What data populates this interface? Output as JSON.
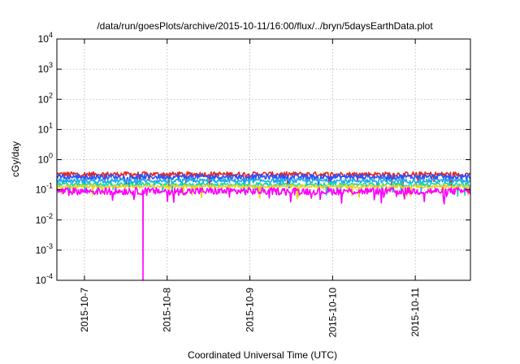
{
  "chart_data": {
    "type": "line",
    "title": "/data/run/goesPlots/archive/2015-10-11/16:00/flux/../bryn/5daysEarthData.plot",
    "xlabel": "Coordinated Universal Time (UTC)",
    "ylabel": "cGy/day",
    "yscale": "log",
    "ylim": [
      0.0001,
      10000
    ],
    "yticks": [
      {
        "value": 0.0001,
        "base": "10",
        "exp": "-4"
      },
      {
        "value": 0.001,
        "base": "10",
        "exp": "-3"
      },
      {
        "value": 0.01,
        "base": "10",
        "exp": "-2"
      },
      {
        "value": 0.1,
        "base": "10",
        "exp": "-1"
      },
      {
        "value": 1,
        "base": "10",
        "exp": "0"
      },
      {
        "value": 10,
        "base": "10",
        "exp": "1"
      },
      {
        "value": 100,
        "base": "10",
        "exp": "2"
      },
      {
        "value": 1000,
        "base": "10",
        "exp": "3"
      },
      {
        "value": 10000,
        "base": "10",
        "exp": "4"
      }
    ],
    "xlim": [
      "2015-10-06 16:00",
      "2015-10-11 16:00"
    ],
    "xticks": [
      "2015-10-7",
      "2015-10-8",
      "2015-10-9",
      "2015-10-10",
      "2015-10-11"
    ],
    "grid": true,
    "series": [
      {
        "color": "#e6261f",
        "level": 0.33,
        "spread": 0.18
      },
      {
        "color": "#2a52ff",
        "level": 0.27,
        "spread": 0.2
      },
      {
        "color": "#22a8e6",
        "level": 0.2,
        "spread": 0.16
      },
      {
        "color": "#18d6b0",
        "level": 0.15,
        "spread": 0.14
      },
      {
        "color": "#e8d21c",
        "level": 0.13,
        "spread": 0.12
      },
      {
        "color": "#ff00ff",
        "level": 0.09,
        "spread": 0.28,
        "dip": {
          "x": "2015-10-07 17:00",
          "value": 0.0001
        }
      }
    ]
  }
}
